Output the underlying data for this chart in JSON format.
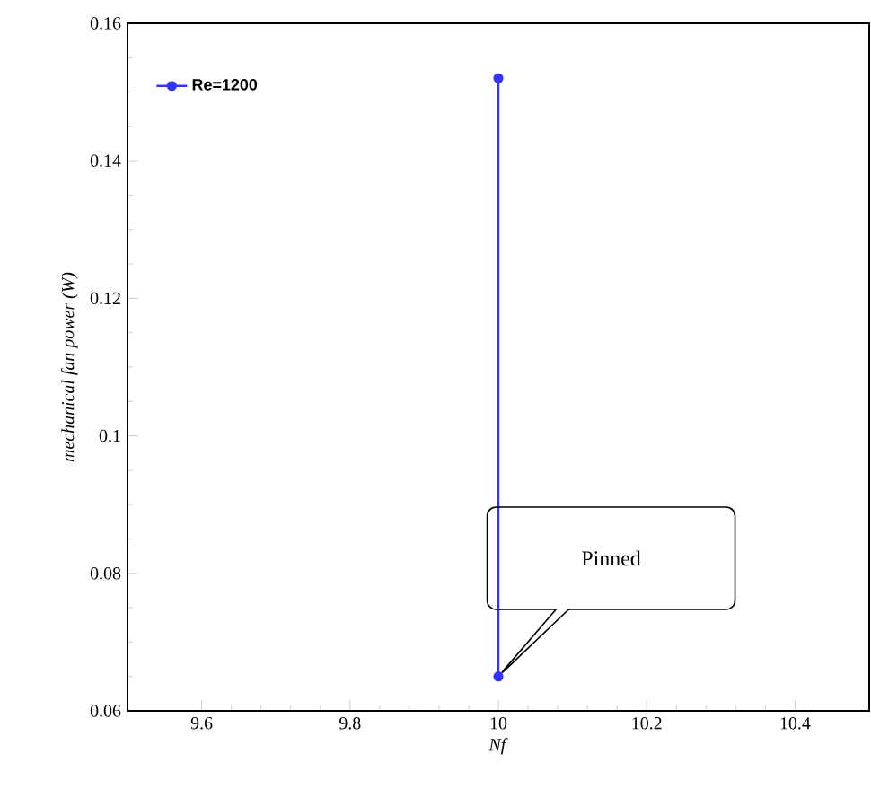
{
  "chart_data": {
    "type": "line",
    "xlabel": "*Nf*",
    "ylabel": "*mechanical fan power (W)*",
    "series": [
      {
        "name": "**Re=1200**",
        "color": "#3333ff",
        "x": [
          10,
          10
        ],
        "values": [
          0.152,
          0.065
        ]
      }
    ],
    "xlim": [
      9.5,
      10.5
    ],
    "ylim": [
      0.06,
      0.16
    ],
    "xticks": [
      9.6,
      9.8,
      10,
      10.2,
      10.4
    ],
    "yticks": [
      0.06,
      0.08,
      0.1,
      0.12,
      0.14,
      0.16
    ],
    "annotations": [
      "Pinned"
    ],
    "legend": "top left",
    "marker": "circle",
    "line_style": "solid",
    "grid": false
  }
}
